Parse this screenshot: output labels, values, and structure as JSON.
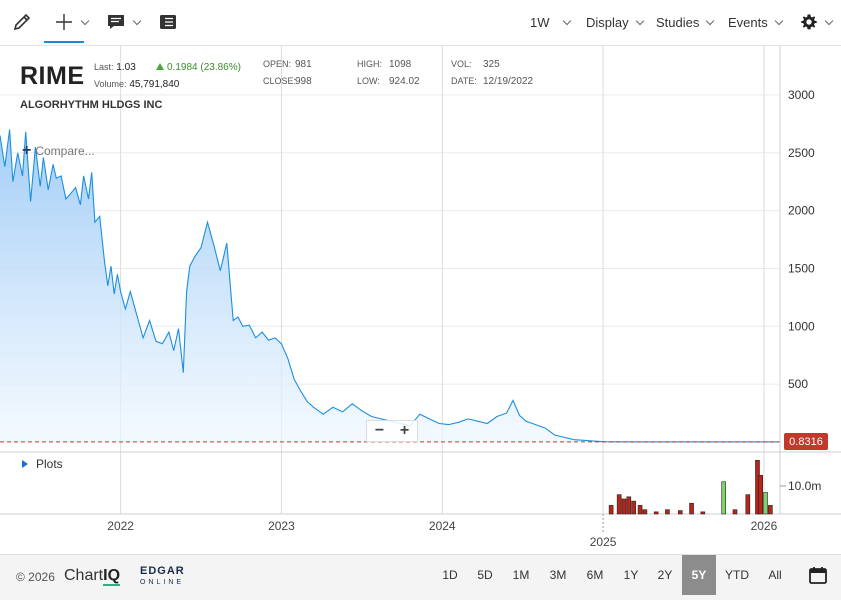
{
  "toolbar": {
    "icons": [
      "pencil-icon",
      "crosshair-icon",
      "comment-icon",
      "table-icon",
      "gear-icon"
    ],
    "periodicity": "1W",
    "display_label": "Display",
    "studies_label": "Studies",
    "events_label": "Events"
  },
  "quote": {
    "symbol": "RIME",
    "company": "ALGORHYTHM HLDGS INC",
    "last_label": "Last:",
    "last_value": "1.03",
    "change": "0.1984 (23.86%)",
    "volume_label": "Volume:",
    "volume_value": "45,791,840",
    "open_label": "OPEN:",
    "open_value": "981",
    "close_label": "CLOSE:",
    "close_value": "998",
    "high_label": "HIGH:",
    "high_value": "1098",
    "low_label": "LOW:",
    "low_value": "924.02",
    "vol_label": "VOL:",
    "vol_value": "325",
    "date_label": "DATE:",
    "date_value": "12/19/2022"
  },
  "compare_label": "Compare...",
  "plots_label": "Plots",
  "current_price": "0.8316",
  "zoom": {
    "minus": "−",
    "plus": "+"
  },
  "colors": {
    "line": "#1c8fe0",
    "area_top": "#9ccaf6",
    "area_bottom": "#eef6fe",
    "price_tag": "#c0392b",
    "volume_up": "#7dd36a",
    "volume_down": "#b8261b",
    "active_range": "#8c8c8c"
  },
  "footer": {
    "copyright": "© 2026",
    "chartiq_a": "Chart",
    "chartiq_b": "IQ",
    "edgar_a": "EDGAR",
    "edgar_b": "ONLINE",
    "ranges": [
      "1D",
      "5D",
      "1M",
      "3M",
      "6M",
      "1Y",
      "2Y",
      "5Y",
      "YTD",
      "All"
    ],
    "active_range": "5Y",
    "calendar_icon": "calendar-icon"
  },
  "chart_data": {
    "type": "area",
    "ylim": [
      0,
      3250
    ],
    "y_ticks": [
      500,
      1000,
      1500,
      2000,
      2500,
      3000
    ],
    "volume_tick_label": "10.0m",
    "x_tick_labels": [
      "2022",
      "2023",
      "2024",
      "2025",
      "2026"
    ],
    "x_ticks": [
      2022.0,
      2023.0,
      2024.0,
      2025.0,
      2026.0
    ],
    "xlim": [
      2021.25,
      2026.1
    ],
    "current_price": 0.8316,
    "grid": true,
    "series": [
      {
        "x": [
          2021.25,
          2021.28,
          2021.31,
          2021.33,
          2021.36,
          2021.39,
          2021.41,
          2021.44,
          2021.47,
          2021.5,
          2021.52,
          2021.55,
          2021.58,
          2021.6,
          2021.63,
          2021.66,
          2021.69,
          2021.72,
          2021.75,
          2021.77,
          2021.8,
          2021.82,
          2021.84,
          2021.87,
          2021.9,
          2021.92,
          2021.94,
          2021.96,
          2021.98,
          2022.0,
          2022.03,
          2022.06,
          2022.1,
          2022.14,
          2022.18,
          2022.22,
          2022.26,
          2022.3,
          2022.33,
          2022.36,
          2022.39,
          2022.41,
          2022.43,
          2022.46,
          2022.5,
          2022.54,
          2022.58,
          2022.62,
          2022.66,
          2022.7,
          2022.73,
          2022.76,
          2022.8,
          2022.84,
          2022.88,
          2022.92,
          2022.96,
          2023.0,
          2023.04,
          2023.08,
          2023.12,
          2023.16,
          2023.2,
          2023.26,
          2023.32,
          2023.38,
          2023.44,
          2023.5,
          2023.56,
          2023.62,
          2023.68,
          2023.74,
          2023.8,
          2023.86,
          2023.92,
          2023.98,
          2024.04,
          2024.1,
          2024.16,
          2024.22,
          2024.28,
          2024.34,
          2024.4,
          2024.44,
          2024.48,
          2024.52,
          2024.58,
          2024.64,
          2024.7,
          2024.76,
          2024.82,
          2024.88,
          2024.94,
          2025.0,
          2025.05,
          2025.2,
          2025.4,
          2025.6,
          2025.8,
          2026.0,
          2026.1
        ],
        "y": [
          2650,
          2380,
          2700,
          2250,
          2500,
          2300,
          2680,
          2080,
          2550,
          2210,
          2460,
          2180,
          2400,
          2280,
          2300,
          2100,
          2150,
          2200,
          2050,
          2300,
          2100,
          2330,
          1900,
          1950,
          1560,
          1350,
          1520,
          1280,
          1450,
          1300,
          1150,
          1300,
          1100,
          900,
          1050,
          870,
          850,
          950,
          790,
          980,
          600,
          1300,
          1520,
          1600,
          1680,
          1900,
          1700,
          1480,
          1720,
          1050,
          1080,
          1000,
          1010,
          900,
          950,
          880,
          900,
          850,
          720,
          540,
          440,
          350,
          300,
          240,
          300,
          260,
          330,
          270,
          220,
          200,
          180,
          160,
          140,
          240,
          200,
          160,
          150,
          170,
          200,
          180,
          160,
          220,
          250,
          360,
          230,
          180,
          150,
          120,
          60,
          40,
          20,
          15,
          8,
          3,
          1.5,
          1.2,
          1.1,
          1.0,
          0.9,
          0.85,
          0.8316
        ]
      }
    ],
    "volume": {
      "x": [
        2025.05,
        2025.1,
        2025.13,
        2025.16,
        2025.19,
        2025.23,
        2025.26,
        2025.33,
        2025.4,
        2025.48,
        2025.55,
        2025.62,
        2025.75,
        2025.82,
        2025.9,
        2025.96,
        2025.98,
        2026.01,
        2026.04
      ],
      "values": [
        2.0,
        4.5,
        3.5,
        4.0,
        3.0,
        2.0,
        1.0,
        0.5,
        1.0,
        0.8,
        2.5,
        0.5,
        7.5,
        1.0,
        4.5,
        12.5,
        9.0,
        5.0,
        2.0
      ],
      "direction": [
        "down",
        "down",
        "down",
        "down",
        "down",
        "down",
        "down",
        "down",
        "down",
        "down",
        "down",
        "down",
        "up",
        "down",
        "down",
        "down",
        "down",
        "up",
        "down"
      ]
    }
  }
}
